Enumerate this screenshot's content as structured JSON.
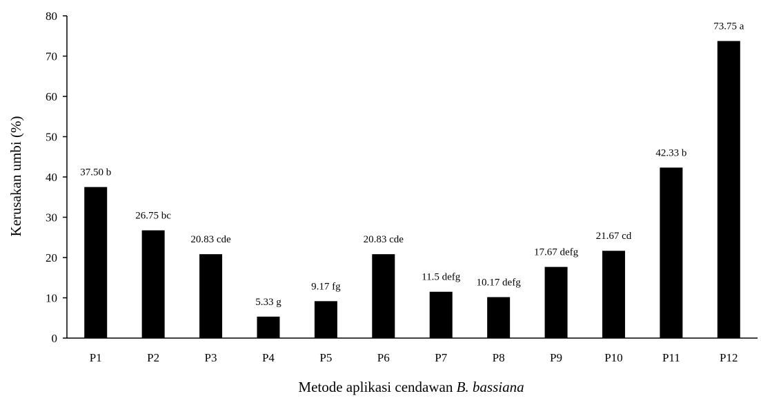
{
  "chart_data": {
    "type": "bar",
    "title": "",
    "xlabel": "Metode aplikasi  cendawan ",
    "xlabel_italic": "B. bassiana",
    "ylabel": "Kerusakan umbi (%)",
    "ylim": [
      0,
      80
    ],
    "yticks": [
      0,
      10,
      20,
      30,
      40,
      50,
      60,
      70,
      80
    ],
    "categories": [
      "P1",
      "P2",
      "P3",
      "P4",
      "P5",
      "P6",
      "P7",
      "P8",
      "P9",
      "P10",
      "P11",
      "P12"
    ],
    "values": [
      37.5,
      26.75,
      20.83,
      5.33,
      9.17,
      20.83,
      11.5,
      10.17,
      17.67,
      21.67,
      42.33,
      73.75
    ],
    "labels": [
      "37.50 b",
      "26.75 bc",
      "20.83 cde",
      "5.33 g",
      "9.17 fg",
      "20.83 cde",
      "11.5 defg",
      "10.17 defg",
      "17.67 defg",
      "21.67 cd",
      "42.33 b",
      "73.75 a"
    ],
    "bar_color": "#000000",
    "grid": false,
    "legend": "none"
  }
}
